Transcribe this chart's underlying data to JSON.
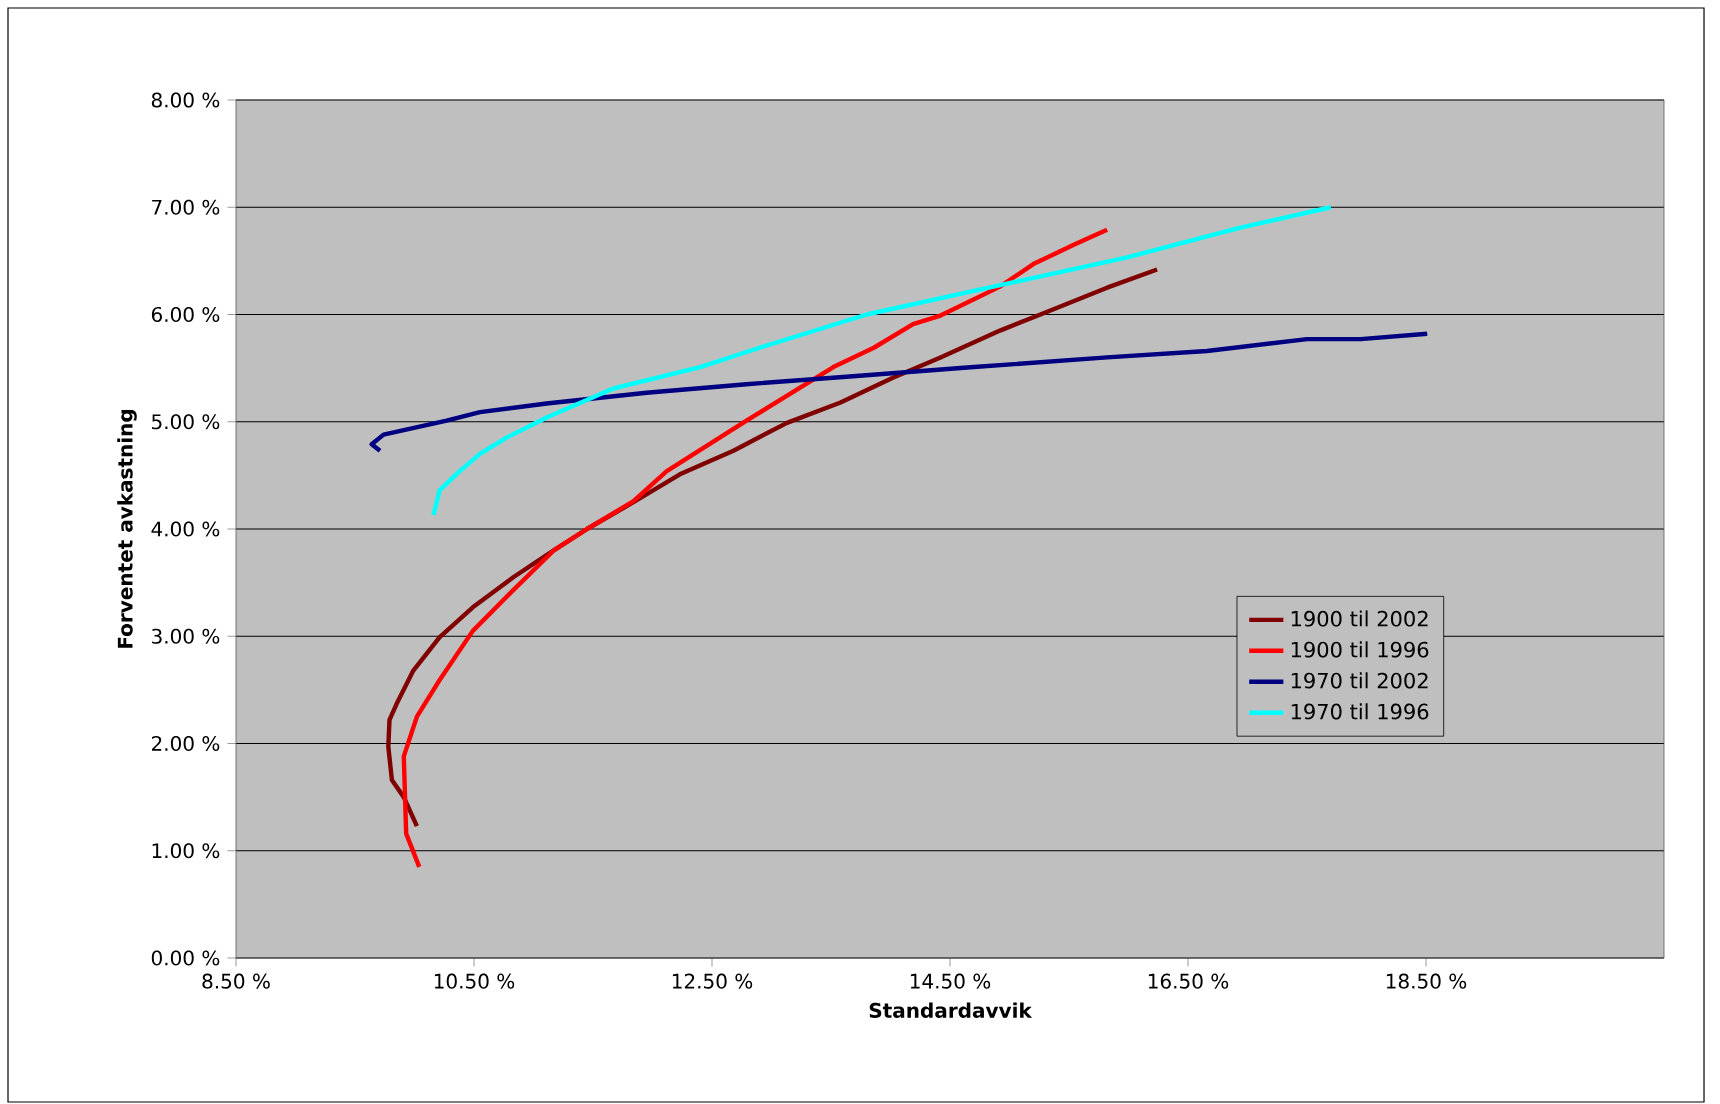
{
  "chart_data": {
    "type": "line",
    "xlabel": "Standardavvik",
    "ylabel": "Forventet avkastning",
    "xlim": [
      8.5,
      20.5
    ],
    "ylim": [
      0,
      8
    ],
    "xticks": [
      {
        "value": 8.5,
        "label": "8.50 %"
      },
      {
        "value": 10.5,
        "label": "10.50 %"
      },
      {
        "value": 12.5,
        "label": "12.50 %"
      },
      {
        "value": 14.5,
        "label": "14.50 %"
      },
      {
        "value": 16.5,
        "label": "16.50 %"
      },
      {
        "value": 18.5,
        "label": "18.50 %"
      }
    ],
    "yticks": [
      {
        "value": 0,
        "label": "0.00 %"
      },
      {
        "value": 1,
        "label": "1.00 %"
      },
      {
        "value": 2,
        "label": "2.00 %"
      },
      {
        "value": 3,
        "label": "3.00 %"
      },
      {
        "value": 4,
        "label": "4.00 %"
      },
      {
        "value": 5,
        "label": "5.00 %"
      },
      {
        "value": 6,
        "label": "6.00 %"
      },
      {
        "value": 7,
        "label": "7.00 %"
      },
      {
        "value": 8,
        "label": "8.00 %"
      }
    ],
    "grid": "y",
    "legend": "right",
    "marker": "none",
    "line_style": "solid",
    "series": [
      {
        "name": "1900 til 2002",
        "color": "#800000",
        "x": [
          10.02,
          9.91,
          9.81,
          9.78,
          9.79,
          9.85,
          9.99,
          10.21,
          10.49,
          10.83,
          11.17,
          11.45,
          11.84,
          12.23,
          12.68,
          13.13,
          13.58,
          14.02,
          14.42,
          14.92,
          15.26,
          15.82,
          16.24
        ],
        "values": [
          1.23,
          1.5,
          1.66,
          1.97,
          2.22,
          2.37,
          2.68,
          2.99,
          3.27,
          3.55,
          3.8,
          4.0,
          4.25,
          4.51,
          4.73,
          4.99,
          5.18,
          5.41,
          5.6,
          5.85,
          6.0,
          6.25,
          6.42
        ]
      },
      {
        "name": "1900 til 1996",
        "color": "#ff0000",
        "x": [
          10.04,
          9.93,
          9.91,
          10.02,
          10.21,
          10.49,
          10.83,
          11.17,
          11.45,
          11.84,
          12.12,
          12.79,
          13.52,
          13.86,
          14.19,
          14.42,
          14.92,
          15.2,
          15.54,
          15.82
        ],
        "values": [
          0.85,
          1.16,
          1.88,
          2.25,
          2.59,
          3.05,
          3.43,
          3.8,
          4.0,
          4.26,
          4.54,
          5.01,
          5.51,
          5.69,
          5.91,
          5.99,
          6.26,
          6.47,
          6.65,
          6.79
        ]
      },
      {
        "name": "1970 til 2002",
        "color": "#000080",
        "x": [
          9.71,
          9.64,
          9.74,
          10.27,
          10.55,
          11.11,
          11.95,
          12.79,
          13.63,
          14.7,
          15.82,
          16.66,
          17.5,
          17.95,
          18.51
        ],
        "values": [
          4.73,
          4.79,
          4.88,
          5.01,
          5.09,
          5.17,
          5.27,
          5.35,
          5.42,
          5.51,
          5.6,
          5.66,
          5.77,
          5.77,
          5.82
        ]
      },
      {
        "name": "1970 til 1996",
        "color": "#00ffff",
        "x": [
          10.16,
          10.21,
          10.38,
          10.55,
          10.77,
          11.11,
          11.67,
          12.4,
          12.9,
          13.8,
          14.7,
          15.98,
          16.94,
          17.7
        ],
        "values": [
          4.13,
          4.36,
          4.54,
          4.7,
          4.85,
          5.04,
          5.31,
          5.51,
          5.69,
          6.0,
          6.22,
          6.53,
          6.81,
          7.0
        ]
      }
    ]
  }
}
